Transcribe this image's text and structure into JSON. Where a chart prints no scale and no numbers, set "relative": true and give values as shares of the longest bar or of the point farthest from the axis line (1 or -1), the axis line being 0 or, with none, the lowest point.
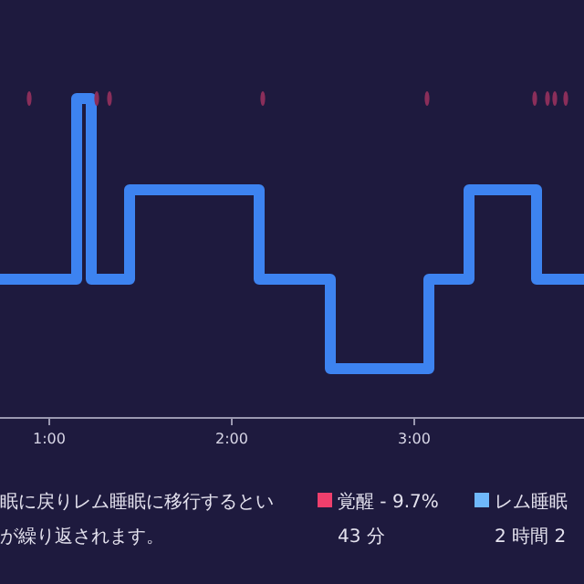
{
  "chart_data": {
    "type": "step",
    "relative": true,
    "x": [
      0.73,
      1.15,
      1.23,
      1.44,
      2.15,
      2.54,
      3.08,
      3.3,
      3.67,
      3.93
    ],
    "xlim": [
      0.73,
      3.93
    ],
    "xticks": [
      {
        "value": 1,
        "label": "1:00"
      },
      {
        "value": 2,
        "label": "2:00"
      },
      {
        "value": 3,
        "label": "3:00"
      }
    ],
    "series": [
      {
        "color": "#3d83f0",
        "values": [
          0.434,
          1,
          0.434,
          0.714,
          0.434,
          0.154,
          0.434,
          0.714,
          0.434,
          0.434
        ]
      },
      {
        "type": "scatter",
        "color": "#8a2e5a",
        "x": [
          0.89,
          1.26,
          1.33,
          2.17,
          3.07,
          3.66,
          3.73,
          3.77,
          3.83
        ],
        "values": [
          1,
          1,
          1,
          1,
          1,
          1,
          1,
          1,
          1
        ]
      }
    ],
    "annotations": [
      "眠に戻りレム睡眠に移行するとい",
      "が繰り返されます。",
      "覚醒 - 9.7%",
      "43 分",
      "レム睡眠",
      "2 時間 2"
    ]
  }
}
